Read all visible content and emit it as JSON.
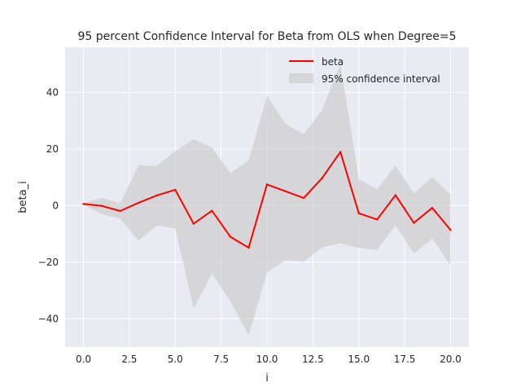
{
  "chart_data": {
    "type": "line",
    "title": "95 percent Confidence Interval for Beta from OLS when Degree=5",
    "xlabel": "i",
    "ylabel": "beta_i",
    "xlim": [
      -1,
      21
    ],
    "ylim": [
      -50,
      56
    ],
    "xticks": [
      0.0,
      2.5,
      5.0,
      7.5,
      10.0,
      12.5,
      15.0,
      17.5,
      20.0
    ],
    "xtick_labels": [
      "0.0",
      "2.5",
      "5.0",
      "7.5",
      "10.0",
      "12.5",
      "15.0",
      "17.5",
      "20.0"
    ],
    "yticks": [
      -40,
      -20,
      0,
      20,
      40
    ],
    "ytick_labels": [
      "−40",
      "−20",
      "0",
      "20",
      "40"
    ],
    "grid": true,
    "legend_position": "top-right",
    "x": [
      0,
      1,
      2,
      3,
      4,
      5,
      6,
      7,
      8,
      9,
      10,
      11,
      12,
      13,
      14,
      15,
      16,
      17,
      18,
      19,
      20
    ],
    "series": [
      {
        "name": "beta",
        "color": "#ff0000",
        "values": [
          0.6,
          -0.1,
          -1.9,
          1.0,
          3.6,
          5.6,
          -6.4,
          -1.8,
          -11.0,
          -14.9,
          7.5,
          5.1,
          2.7,
          9.7,
          19.0,
          -2.7,
          -4.9,
          3.7,
          -6.1,
          -0.8,
          -8.6
        ]
      }
    ],
    "band": {
      "name": "95% confidence interval",
      "color": "#c8c8c8",
      "lower": [
        0.4,
        -3.0,
        -4.7,
        -12.4,
        -7.1,
        -8.0,
        -36.4,
        -24.0,
        -33.8,
        -45.9,
        -23.6,
        -19.3,
        -19.8,
        -14.8,
        -13.3,
        -15.0,
        -15.7,
        -7.0,
        -17.0,
        -11.6,
        -21.2
      ],
      "upper": [
        0.9,
        2.8,
        0.8,
        14.3,
        14.0,
        19.3,
        23.5,
        20.5,
        11.5,
        16.0,
        38.8,
        29.0,
        25.2,
        33.8,
        50.1,
        9.4,
        5.7,
        14.2,
        4.4,
        10.1,
        3.9
      ]
    }
  },
  "colors": {
    "plot_bg": "#eaeaf2",
    "grid": "#ffffff",
    "text": "#262626"
  }
}
